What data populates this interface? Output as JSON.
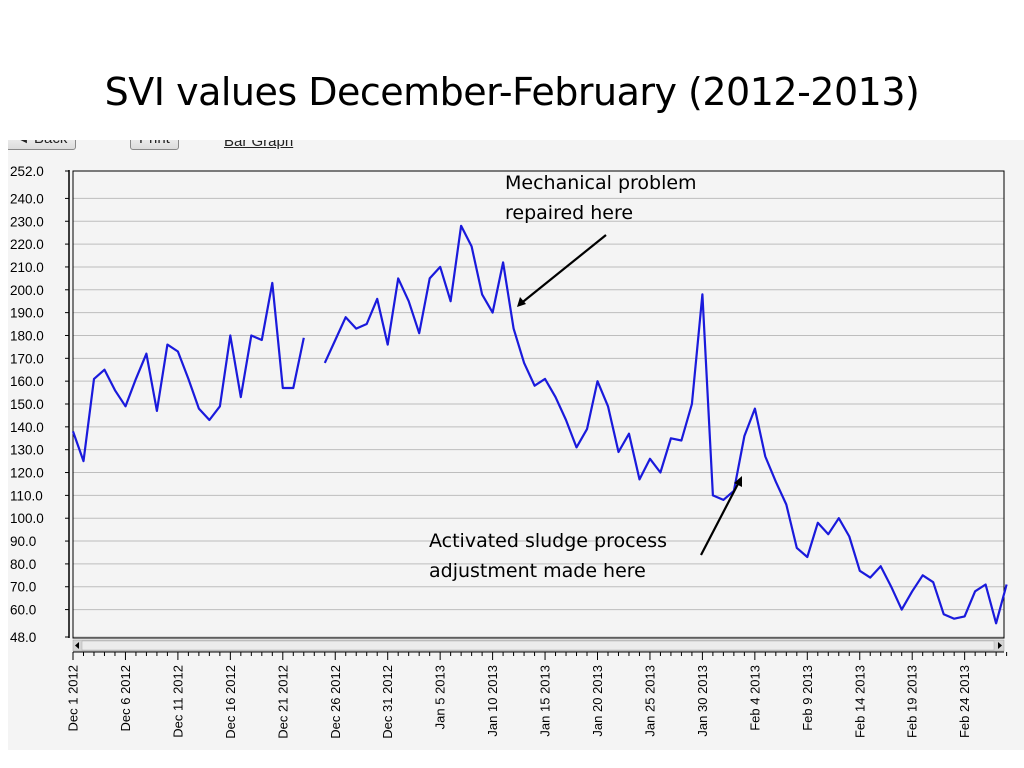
{
  "slide": {
    "title": "SVI values December-February (2012-2013)"
  },
  "toolbar": {
    "back_label": "◄ Back",
    "print_label": "Print",
    "bar_graph_label": "Bar Graph"
  },
  "annotations": {
    "mechanical_line1": "Mechanical problem",
    "mechanical_line2": "repaired here",
    "activated_line1": "Activated sludge process",
    "activated_line2": "adjustment made here"
  },
  "chart_data": {
    "type": "line",
    "title": "",
    "xlabel": "",
    "ylabel": "",
    "ylim": [
      48.0,
      252.0
    ],
    "y_ticks": [
      "252.0",
      "240.0",
      "230.0",
      "220.0",
      "210.0",
      "200.0",
      "190.0",
      "180.0",
      "170.0",
      "160.0",
      "150.0",
      "140.0",
      "130.0",
      "120.0",
      "110.0",
      "100.0",
      "90.0",
      "80.0",
      "70.0",
      "60.0",
      "48.0"
    ],
    "x_ticks": [
      "Dec 1 2012",
      "Dec 6 2012",
      "Dec 11 2012",
      "Dec 16 2012",
      "Dec 21 2012",
      "Dec 26 2012",
      "Dec 31 2012",
      "Jan 5 2013",
      "Jan 10 2013",
      "Jan 15 2013",
      "Jan 20 2013",
      "Jan 25 2013",
      "Jan 30 2013",
      "Feb 4 2013",
      "Feb 9 2013",
      "Feb 14 2013",
      "Feb 19 2013",
      "Feb 24 2013"
    ],
    "grid": true,
    "line_color": "#1a1adc",
    "series": [
      {
        "segments": [
          [
            [
              0,
              138
            ],
            [
              1,
              125
            ],
            [
              2,
              161
            ],
            [
              3,
              165
            ],
            [
              4,
              156
            ],
            [
              5,
              149
            ],
            [
              6,
              161
            ],
            [
              7,
              172
            ],
            [
              8,
              147
            ],
            [
              9,
              176
            ],
            [
              10,
              173
            ],
            [
              11,
              161
            ],
            [
              12,
              148
            ],
            [
              13,
              143
            ],
            [
              14,
              149
            ],
            [
              15,
              180
            ],
            [
              16,
              153
            ],
            [
              17,
              180
            ],
            [
              18,
              178
            ],
            [
              19,
              203
            ],
            [
              20,
              157
            ],
            [
              21,
              157
            ],
            [
              22,
              179
            ]
          ],
          [
            [
              24,
              168
            ],
            [
              25,
              178
            ],
            [
              26,
              188
            ],
            [
              27,
              183
            ],
            [
              28,
              185
            ],
            [
              29,
              196
            ],
            [
              30,
              176
            ],
            [
              31,
              205
            ],
            [
              32,
              195
            ],
            [
              33,
              181
            ],
            [
              34,
              205
            ],
            [
              35,
              210
            ],
            [
              36,
              195
            ],
            [
              37,
              228
            ],
            [
              38,
              219
            ],
            [
              39,
              198
            ],
            [
              40,
              190
            ],
            [
              41,
              212
            ],
            [
              42,
              183
            ],
            [
              43,
              168
            ],
            [
              44,
              158
            ],
            [
              45,
              161
            ],
            [
              46,
              153
            ],
            [
              47,
              143
            ],
            [
              48,
              131
            ],
            [
              49,
              139
            ],
            [
              50,
              160
            ],
            [
              51,
              149
            ],
            [
              52,
              129
            ],
            [
              53,
              137
            ],
            [
              54,
              117
            ],
            [
              55,
              126
            ],
            [
              56,
              120
            ],
            [
              57,
              135
            ],
            [
              58,
              134
            ],
            [
              59,
              150
            ],
            [
              60,
              198
            ],
            [
              61,
              110
            ],
            [
              62,
              108
            ],
            [
              63,
              112
            ],
            [
              64,
              136
            ],
            [
              65,
              148
            ],
            [
              66,
              127
            ],
            [
              67,
              116
            ],
            [
              68,
              106
            ],
            [
              69,
              87
            ],
            [
              70,
              83
            ],
            [
              71,
              98
            ],
            [
              72,
              93
            ],
            [
              73,
              100
            ],
            [
              74,
              92
            ],
            [
              75,
              77
            ],
            [
              76,
              74
            ],
            [
              77,
              79
            ],
            [
              78,
              70
            ],
            [
              79,
              60
            ],
            [
              80,
              68
            ],
            [
              81,
              75
            ],
            [
              82,
              72
            ],
            [
              83,
              58
            ],
            [
              84,
              56
            ],
            [
              85,
              57
            ],
            [
              86,
              68
            ],
            [
              87,
              71
            ],
            [
              88,
              54
            ],
            [
              89,
              71
            ]
          ]
        ]
      }
    ]
  }
}
